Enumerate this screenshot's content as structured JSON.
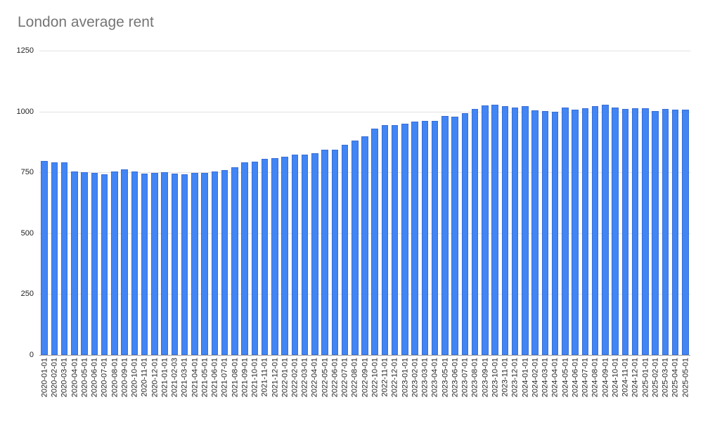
{
  "chart_data": {
    "type": "bar",
    "title": "London average rent",
    "xlabel": "",
    "ylabel": "",
    "ylim": [
      0,
      1250
    ],
    "yticks": [
      0,
      250,
      500,
      750,
      1000,
      1250
    ],
    "grid": true,
    "legend": "none",
    "bar_color": "#4285f4",
    "categories": [
      "2020-01-01",
      "2020-02-01",
      "2020-03-01",
      "2020-04-01",
      "2020-05-01",
      "2020-06-01",
      "2020-07-01",
      "2020-08-01",
      "2020-09-01",
      "2020-10-01",
      "2020-11-01",
      "2020-12-01",
      "2021-01-01",
      "2021-02-03",
      "2021-03-01",
      "2021-04-01",
      "2021-05-01",
      "2021-06-01",
      "2021-07-01",
      "2021-08-01",
      "2021-09-01",
      "2021-10-01",
      "2021-11-01",
      "2021-12-01",
      "2022-01-01",
      "2022-02-01",
      "2022-03-01",
      "2022-04-01",
      "2022-05-01",
      "2022-06-01",
      "2022-07-01",
      "2022-08-01",
      "2022-09-01",
      "2022-10-01",
      "2022-11-01",
      "2022-12-01",
      "2023-01-01",
      "2023-02-01",
      "2023-03-01",
      "2023-04-01",
      "2023-05-01",
      "2023-06-01",
      "2023-07-01",
      "2023-08-01",
      "2023-09-01",
      "2023-10-01",
      "2023-11-01",
      "2023-12-01",
      "2024-01-01",
      "2024-02-01",
      "2024-03-01",
      "2024-04-01",
      "2024-05-01",
      "2024-06-01",
      "2024-07-01",
      "2024-08-01",
      "2024-09-01",
      "2024-10-01",
      "2024-11-01",
      "2024-12-01",
      "2025-01-01",
      "2025-02-01",
      "2025-03-01",
      "2025-04-01",
      "2025-05-01"
    ],
    "values": [
      797,
      792,
      790,
      754,
      751,
      749,
      741,
      754,
      762,
      754,
      746,
      749,
      751,
      746,
      741,
      749,
      749,
      754,
      759,
      772,
      791,
      795,
      806,
      808,
      815,
      824,
      823,
      830,
      843,
      843,
      864,
      880,
      899,
      930,
      945,
      945,
      950,
      958,
      960,
      961,
      981,
      979,
      992,
      1010,
      1024,
      1028,
      1023,
      1017,
      1021,
      1006,
      1003,
      998,
      1015,
      1008,
      1014,
      1023,
      1029,
      1017,
      1010,
      1013,
      1012,
      1003,
      1010,
      1008,
      1008
    ]
  }
}
